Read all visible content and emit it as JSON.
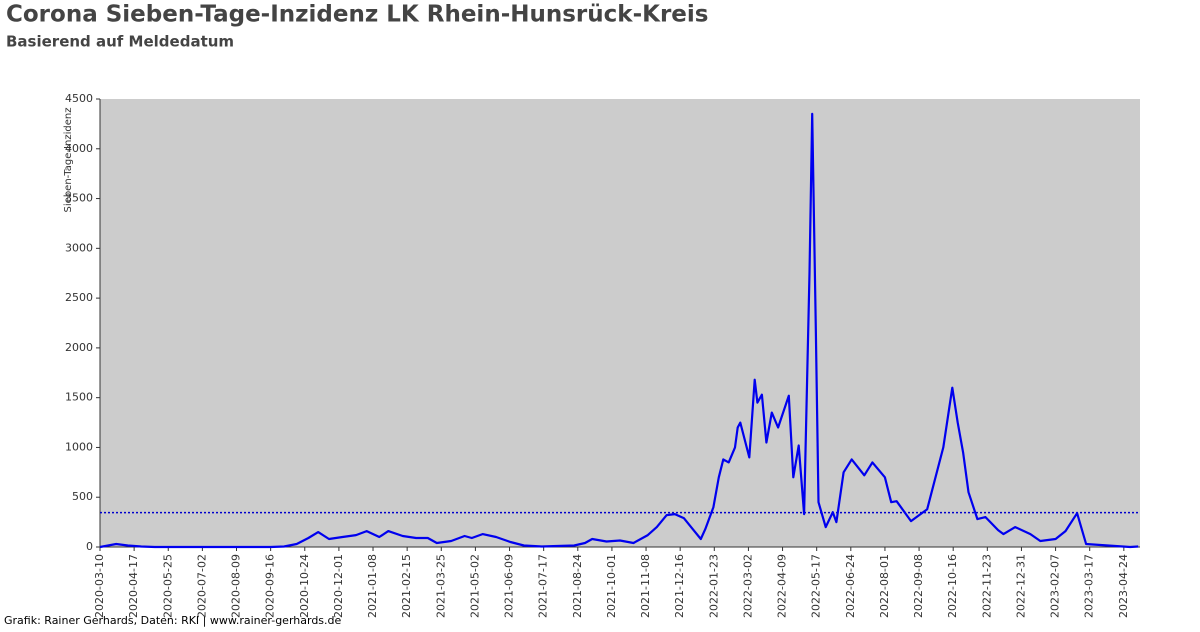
{
  "chart_data": {
    "type": "line",
    "title": "Corona Sieben-Tage-Inzidenz LK Rhein-Hunsrück-Kreis",
    "subtitle": "Basierend auf Meldedatum",
    "y_label": "Sieben-Tage-Inzidenz",
    "footer": "Grafik: Rainer Gerhards, Daten: RKI | www.rainer-gerhards.de",
    "x": [
      "2020-03-10",
      "2020-03-28",
      "2020-04-10",
      "2020-04-25",
      "2020-05-10",
      "2020-09-16",
      "2020-10-01",
      "2020-10-15",
      "2020-10-28",
      "2020-11-08",
      "2020-11-20",
      "2020-12-05",
      "2020-12-20",
      "2021-01-01",
      "2021-01-15",
      "2021-01-25",
      "2021-02-10",
      "2021-02-25",
      "2021-03-10",
      "2021-03-20",
      "2021-04-05",
      "2021-04-20",
      "2021-04-28",
      "2021-05-10",
      "2021-05-25",
      "2021-06-10",
      "2021-06-25",
      "2021-07-15",
      "2021-08-01",
      "2021-08-20",
      "2021-09-01",
      "2021-09-09",
      "2021-09-25",
      "2021-10-10",
      "2021-10-25",
      "2021-11-10",
      "2021-11-20",
      "2021-12-01",
      "2021-12-10",
      "2021-12-20",
      "2021-12-30",
      "2022-01-08",
      "2022-01-13",
      "2022-01-22",
      "2022-01-28",
      "2022-02-02",
      "2022-02-08",
      "2022-02-15",
      "2022-02-18",
      "2022-02-21",
      "2022-03-03",
      "2022-03-09",
      "2022-03-12",
      "2022-03-17",
      "2022-03-22",
      "2022-03-28",
      "2022-04-04",
      "2022-04-16",
      "2022-04-21",
      "2022-04-27",
      "2022-05-03",
      "2022-05-09",
      "2022-05-12",
      "2022-05-16",
      "2022-05-19",
      "2022-05-27",
      "2022-06-04",
      "2022-06-08",
      "2022-06-16",
      "2022-06-25",
      "2022-07-09",
      "2022-07-18",
      "2022-08-01",
      "2022-08-08",
      "2022-08-14",
      "2022-08-30",
      "2022-09-17",
      "2022-10-05",
      "2022-10-15",
      "2022-10-21",
      "2022-10-27",
      "2022-11-02",
      "2022-11-12",
      "2022-11-21",
      "2022-12-05",
      "2022-12-11",
      "2022-12-24",
      "2023-01-10",
      "2023-01-21",
      "2023-02-07",
      "2023-02-18",
      "2023-03-03",
      "2023-03-13",
      "2023-03-29",
      "2023-05-01",
      "2023-05-10"
    ],
    "series": [
      {
        "name": "Sieben-Tage-Inzidenz",
        "color": "#0000ee",
        "values": [
          0,
          30,
          15,
          5,
          0,
          0,
          5,
          30,
          90,
          150,
          80,
          100,
          120,
          160,
          100,
          160,
          110,
          90,
          90,
          40,
          60,
          110,
          90,
          130,
          100,
          50,
          15,
          5,
          10,
          15,
          40,
          80,
          55,
          65,
          40,
          120,
          200,
          320,
          330,
          290,
          180,
          80,
          180,
          400,
          700,
          880,
          850,
          1000,
          1200,
          1250,
          900,
          1680,
          1450,
          1530,
          1050,
          1350,
          1200,
          1520,
          700,
          1020,
          330,
          2750,
          4350,
          2200,
          450,
          200,
          350,
          250,
          750,
          880,
          720,
          850,
          700,
          450,
          460,
          260,
          380,
          1000,
          1600,
          1250,
          950,
          550,
          280,
          300,
          170,
          130,
          200,
          130,
          60,
          80,
          160,
          340,
          30,
          20,
          0,
          5
        ]
      }
    ],
    "xlim": [
      "2020-03-10",
      "2023-05-12"
    ],
    "xticks": [
      "2020-03-10",
      "2020-04-17",
      "2020-05-25",
      "2020-07-02",
      "2020-08-09",
      "2020-09-16",
      "2020-10-24",
      "2020-12-01",
      "2021-01-08",
      "2021-02-15",
      "2021-03-25",
      "2021-05-02",
      "2021-06-09",
      "2021-07-17",
      "2021-08-24",
      "2021-10-01",
      "2021-11-08",
      "2021-12-16",
      "2022-01-23",
      "2022-03-02",
      "2022-04-09",
      "2022-05-17",
      "2022-06-24",
      "2022-08-01",
      "2022-09-08",
      "2022-10-16",
      "2022-11-23",
      "2022-12-31",
      "2023-02-07",
      "2023-03-17",
      "2023-04-24"
    ],
    "ylim": [
      0,
      4500
    ],
    "yticks": [
      0,
      500,
      1000,
      1500,
      2000,
      2500,
      3000,
      3500,
      4000,
      4500
    ],
    "reference_line": {
      "value": 345,
      "color": "#0000cc"
    },
    "background": "#cccccc"
  }
}
